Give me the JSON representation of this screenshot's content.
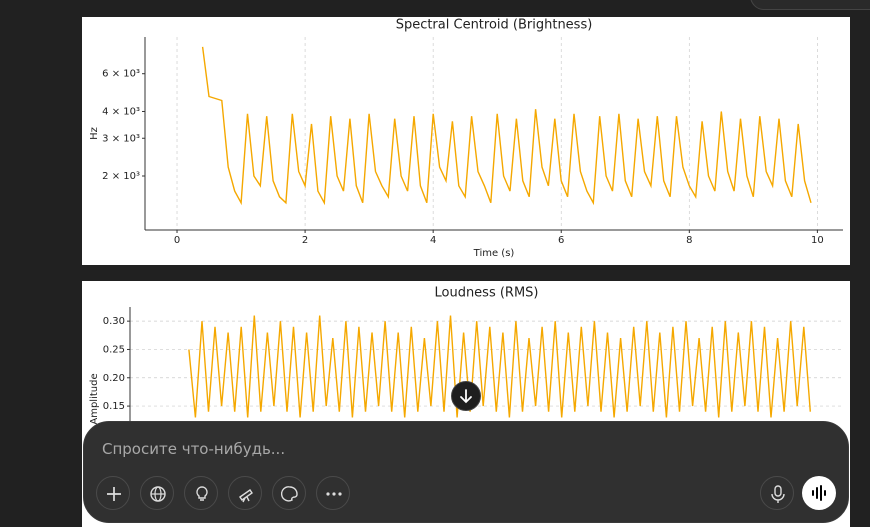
{
  "chart_data": [
    {
      "type": "line",
      "title": "Spectral Centroid (Brightness)",
      "x_label": "Time (s)",
      "y_label": "Hz",
      "color": "#f5a800",
      "log_y": true,
      "grid": "x",
      "xlim": [
        -0.5,
        10.4
      ],
      "xticks": [
        0,
        2,
        4,
        6,
        8,
        10
      ],
      "ylim": [
        1120,
        8900
      ],
      "yticks": [
        {
          "value": 2000,
          "label": "2 × 10³"
        },
        {
          "value": 3000,
          "label": "3 × 10³"
        },
        {
          "value": 4000,
          "label": "4 × 10³"
        },
        {
          "value": 6000,
          "label": "6 × 10³"
        }
      ],
      "x": [
        0.4,
        0.5,
        0.6,
        0.7,
        0.8,
        0.9,
        1.0,
        1.1,
        1.2,
        1.3,
        1.4,
        1.5,
        1.6,
        1.7,
        1.8,
        1.9,
        2.0,
        2.1,
        2.2,
        2.3,
        2.4,
        2.5,
        2.6,
        2.7,
        2.8,
        2.9,
        3.0,
        3.1,
        3.2,
        3.3,
        3.4,
        3.5,
        3.6,
        3.7,
        3.8,
        3.9,
        4.0,
        4.1,
        4.2,
        4.3,
        4.4,
        4.5,
        4.6,
        4.7,
        4.8,
        4.9,
        5.0,
        5.1,
        5.2,
        5.3,
        5.4,
        5.5,
        5.6,
        5.7,
        5.8,
        5.9,
        6.0,
        6.1,
        6.2,
        6.3,
        6.4,
        6.5,
        6.6,
        6.7,
        6.8,
        6.9,
        7.0,
        7.1,
        7.2,
        7.3,
        7.4,
        7.5,
        7.6,
        7.7,
        7.8,
        7.9,
        8.0,
        8.1,
        8.2,
        8.3,
        8.4,
        8.5,
        8.6,
        8.7,
        8.8,
        8.9,
        9.0,
        9.1,
        9.2,
        9.3,
        9.4,
        9.5,
        9.6,
        9.7,
        9.8,
        9.9
      ],
      "values": [
        8000,
        4700,
        4600,
        4500,
        2200,
        1700,
        1500,
        3900,
        2000,
        1800,
        3800,
        1900,
        1600,
        1500,
        3900,
        2100,
        1800,
        3500,
        1700,
        1500,
        3800,
        2000,
        1700,
        3700,
        1800,
        1500,
        3900,
        2100,
        1800,
        1600,
        3700,
        2000,
        1700,
        3800,
        1800,
        1500,
        3900,
        2200,
        1900,
        3600,
        1800,
        1600,
        3800,
        2100,
        1800,
        1500,
        3900,
        2000,
        1700,
        3700,
        1900,
        1600,
        4100,
        2200,
        1800,
        3700,
        1900,
        1600,
        3900,
        2100,
        1700,
        1500,
        3800,
        2000,
        1700,
        3900,
        1900,
        1600,
        3700,
        2100,
        1800,
        3800,
        1900,
        1600,
        3800,
        2200,
        1800,
        1600,
        3600,
        2000,
        1700,
        4000,
        2100,
        1700,
        3700,
        2000,
        1600,
        3800,
        2100,
        1800,
        3700,
        1900,
        1600,
        3500,
        1900,
        1500
      ]
    },
    {
      "type": "line",
      "title": "Loudness (RMS)",
      "y_label": "Amplitude",
      "color": "#f5a800",
      "log_y": false,
      "grid": "y",
      "xlim": [
        -0.5,
        10.4
      ],
      "ylim": [
        0,
        0.325
      ],
      "yticks": [
        0.15,
        {
          "value": 0.2,
          "label": "0.20"
        },
        0.25,
        {
          "value": 0.3,
          "label": "0.30"
        }
      ],
      "x": [
        0.4,
        0.5,
        0.6,
        0.7,
        0.8,
        0.9,
        1.0,
        1.1,
        1.2,
        1.3,
        1.4,
        1.5,
        1.6,
        1.7,
        1.8,
        1.9,
        2.0,
        2.1,
        2.2,
        2.3,
        2.4,
        2.5,
        2.6,
        2.7,
        2.8,
        2.9,
        3.0,
        3.1,
        3.2,
        3.3,
        3.4,
        3.5,
        3.6,
        3.7,
        3.8,
        3.9,
        4.0,
        4.1,
        4.2,
        4.3,
        4.4,
        4.5,
        4.6,
        4.7,
        4.8,
        4.9,
        5.0,
        5.1,
        5.2,
        5.3,
        5.4,
        5.5,
        5.6,
        5.7,
        5.8,
        5.9,
        6.0,
        6.1,
        6.2,
        6.3,
        6.4,
        6.5,
        6.6,
        6.7,
        6.8,
        6.9,
        7.0,
        7.1,
        7.2,
        7.3,
        7.4,
        7.5,
        7.6,
        7.7,
        7.8,
        7.9,
        8.0,
        8.1,
        8.2,
        8.3,
        8.4,
        8.5,
        8.6,
        8.7,
        8.8,
        8.9,
        9.0,
        9.1,
        9.2,
        9.3,
        9.4,
        9.5,
        9.6,
        9.7,
        9.8,
        9.9
      ],
      "values": [
        0.25,
        0.13,
        0.3,
        0.14,
        0.29,
        0.15,
        0.28,
        0.14,
        0.29,
        0.13,
        0.31,
        0.14,
        0.28,
        0.15,
        0.3,
        0.14,
        0.29,
        0.13,
        0.28,
        0.14,
        0.31,
        0.15,
        0.27,
        0.14,
        0.3,
        0.13,
        0.29,
        0.14,
        0.28,
        0.15,
        0.3,
        0.14,
        0.28,
        0.13,
        0.29,
        0.14,
        0.27,
        0.15,
        0.3,
        0.14,
        0.31,
        0.13,
        0.28,
        0.14,
        0.3,
        0.15,
        0.29,
        0.14,
        0.28,
        0.13,
        0.3,
        0.14,
        0.27,
        0.15,
        0.29,
        0.14,
        0.3,
        0.13,
        0.28,
        0.14,
        0.29,
        0.15,
        0.3,
        0.14,
        0.28,
        0.13,
        0.27,
        0.14,
        0.29,
        0.15,
        0.3,
        0.14,
        0.28,
        0.13,
        0.29,
        0.14,
        0.3,
        0.15,
        0.27,
        0.14,
        0.29,
        0.13,
        0.3,
        0.14,
        0.28,
        0.15,
        0.3,
        0.14,
        0.29,
        0.13,
        0.27,
        0.14,
        0.3,
        0.15,
        0.29,
        0.14
      ]
    }
  ],
  "composer": {
    "placeholder": "Спросите что-нибудь..."
  }
}
